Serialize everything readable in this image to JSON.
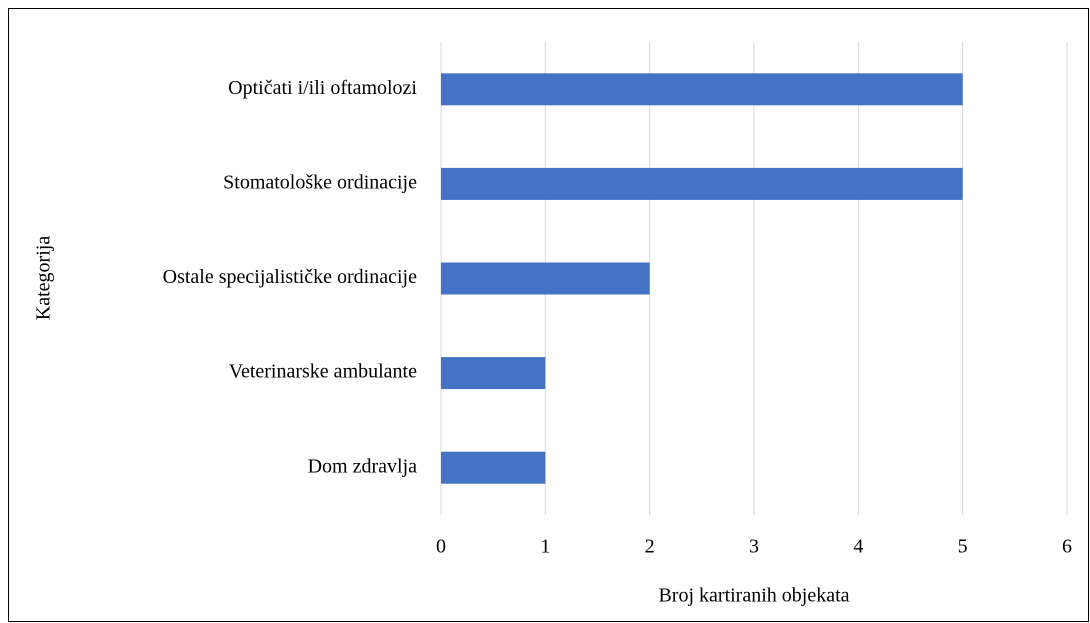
{
  "chart_data": {
    "type": "bar",
    "orientation": "horizontal",
    "categories": [
      "Optičati i/ili oftamolozi",
      "Stomatološke ordinacije",
      "Ostale specijalističke ordinacije",
      "Veterinarske ambulante",
      "Dom zdravlja"
    ],
    "values": [
      5,
      5,
      2,
      1,
      1
    ],
    "color": "#4472c4",
    "xlabel": "Broj kartiranih objekata",
    "ylabel": "Kategorija",
    "xlim": [
      0,
      6
    ],
    "xticks": [
      0,
      1,
      2,
      3,
      4,
      5,
      6
    ],
    "grid": true
  }
}
